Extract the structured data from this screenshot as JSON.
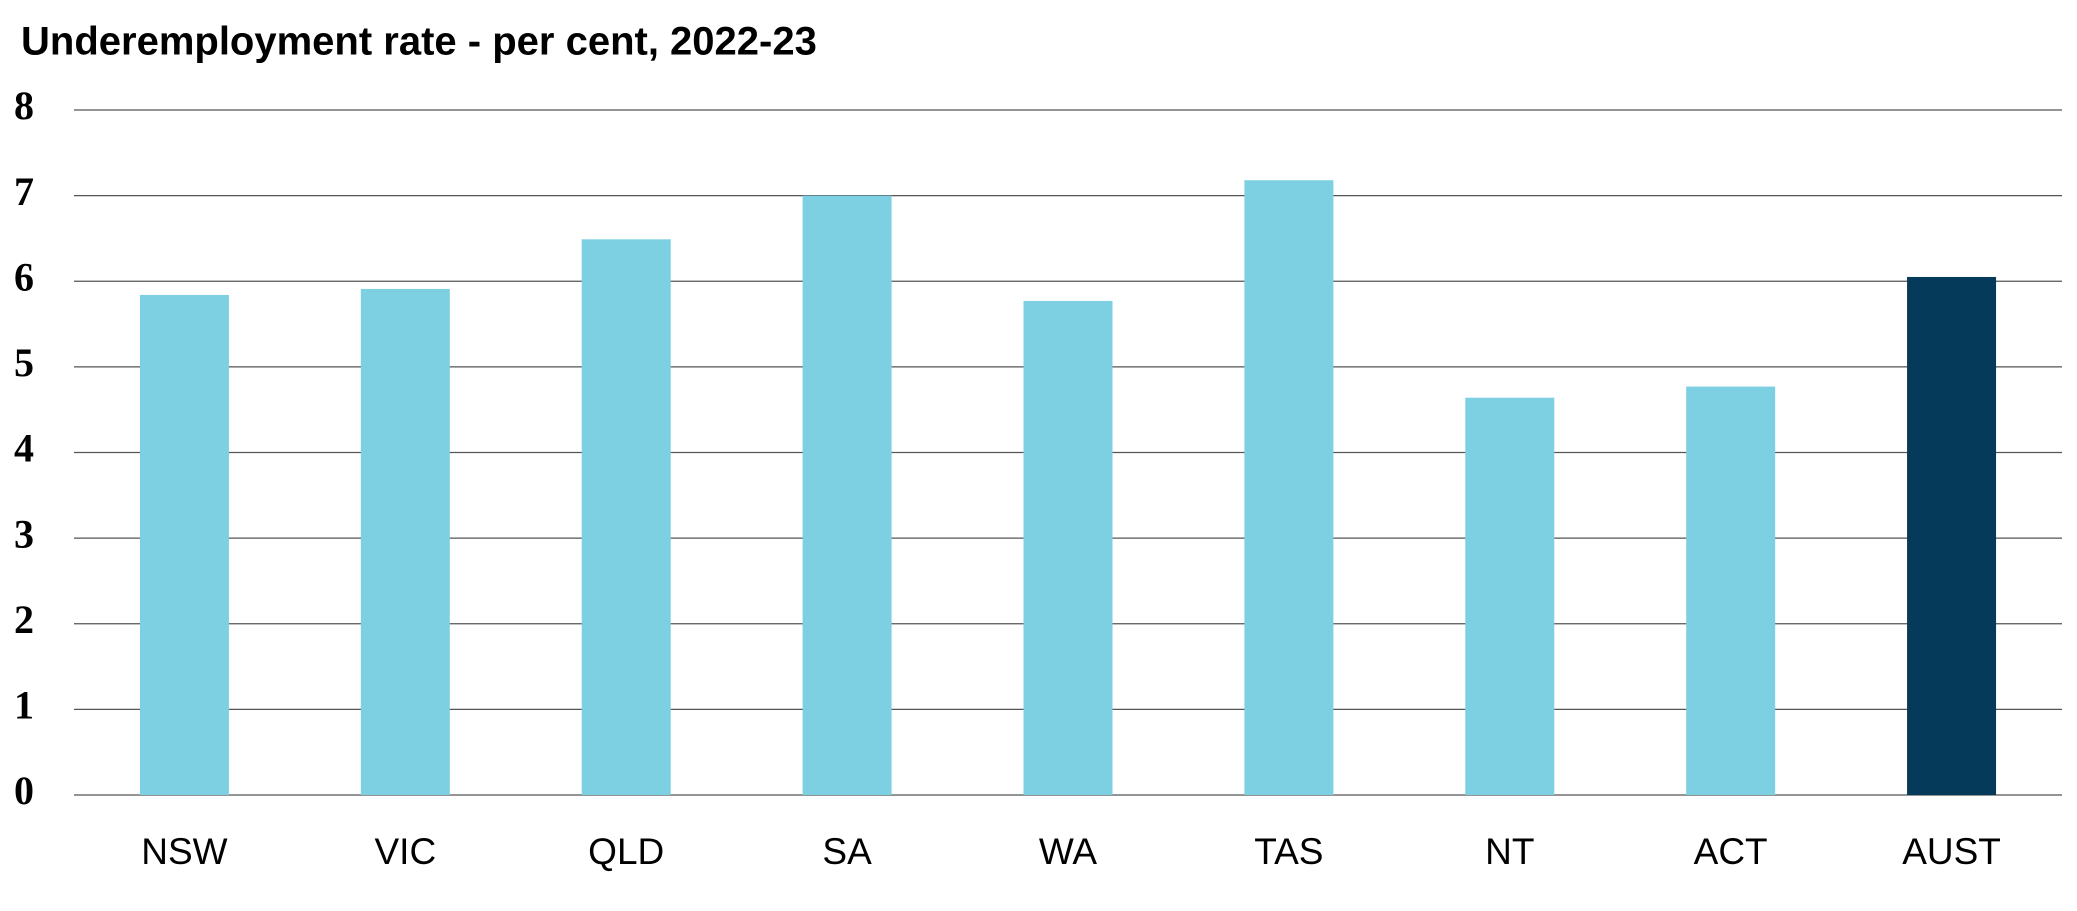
{
  "chart_data": {
    "type": "bar",
    "title": "Underemployment rate - per cent, 2022-23",
    "categories": [
      "NSW",
      "VIC",
      "QLD",
      "SA",
      "WA",
      "TAS",
      "NT",
      "ACT",
      "AUST"
    ],
    "values": [
      5.84,
      5.91,
      6.49,
      7.0,
      5.77,
      7.18,
      4.64,
      4.77,
      6.05
    ],
    "colors": [
      "#7dd0e1",
      "#7dd0e1",
      "#7dd0e1",
      "#7dd0e1",
      "#7dd0e1",
      "#7dd0e1",
      "#7dd0e1",
      "#7dd0e1",
      "#053a5a"
    ],
    "ylim": [
      0,
      8
    ],
    "yticks": [
      0,
      1,
      2,
      3,
      4,
      5,
      6,
      7,
      8
    ],
    "grid": true
  }
}
